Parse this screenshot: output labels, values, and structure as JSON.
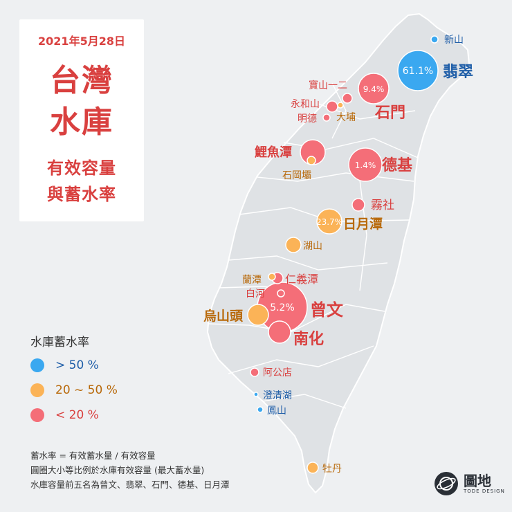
{
  "title": {
    "date": "2021年5月28日",
    "line1": "台灣",
    "line2": "水庫",
    "sub1": "有效容量",
    "sub2": "與蓄水率"
  },
  "legend": {
    "title": "水庫蓄水率",
    "items": [
      {
        "label": "> 50 %",
        "color": "#3aa8f0",
        "text_color": "#1f5ea8"
      },
      {
        "label": "20 ~ 50 %",
        "color": "#fbb357",
        "text_color": "#b8690a"
      },
      {
        "label": "< 20 %",
        "color": "#f46e78",
        "text_color": "#d9403f"
      }
    ]
  },
  "notes": [
    "蓄水率 = 有效蓄水量 / 有效容量",
    "圓圈大小等比例於水庫有效容量 (最大蓄水量)",
    "水庫容量前五名為曾文、翡翠、石門、德基、日月潭"
  ],
  "brand": {
    "name": "圖地",
    "tagline": "TODE DESIGN"
  },
  "reservoirs": [
    {
      "name": "新山",
      "category": "high"
    },
    {
      "name": "翡翠",
      "category": "high",
      "rate": "61.1%"
    },
    {
      "name": "寶山一二",
      "category": "low"
    },
    {
      "name": "石門",
      "category": "low",
      "rate": "9.4%"
    },
    {
      "name": "永和山",
      "category": "low"
    },
    {
      "name": "明德",
      "category": "low"
    },
    {
      "name": "大埔",
      "category": "mid"
    },
    {
      "name": "鯉魚潭",
      "category": "low"
    },
    {
      "name": "石岡壩",
      "category": "mid"
    },
    {
      "name": "德基",
      "category": "low",
      "rate": "1.4%"
    },
    {
      "name": "霧社",
      "category": "low"
    },
    {
      "name": "日月潭",
      "category": "mid",
      "rate": "23.7%"
    },
    {
      "name": "湖山",
      "category": "mid"
    },
    {
      "name": "蘭潭",
      "category": "mid"
    },
    {
      "name": "仁義潭",
      "category": "low"
    },
    {
      "name": "白河",
      "category": "low"
    },
    {
      "name": "曾文",
      "category": "low",
      "rate": "5.2%"
    },
    {
      "name": "烏山頭",
      "category": "mid"
    },
    {
      "name": "南化",
      "category": "low"
    },
    {
      "name": "阿公店",
      "category": "low"
    },
    {
      "name": "澄清湖",
      "category": "high"
    },
    {
      "name": "鳳山",
      "category": "high"
    },
    {
      "name": "牡丹",
      "category": "mid"
    }
  ]
}
